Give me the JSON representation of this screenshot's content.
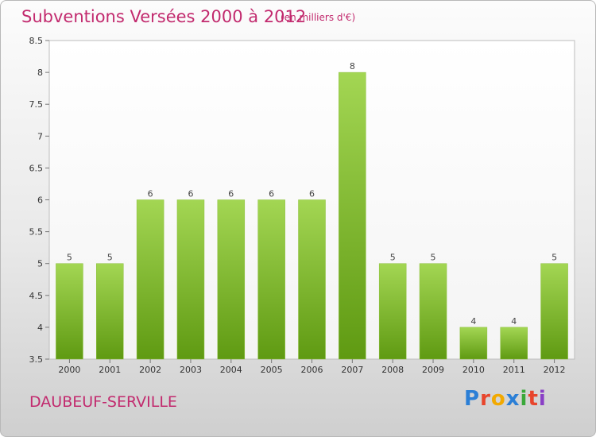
{
  "title": "Subventions Versées 2000 à 2012",
  "subtitle": "(en milliers d'€)",
  "place": "DAUBEUF-SERVILLE",
  "logo": "Proxiti",
  "colors": {
    "accent": "#c22a6e",
    "bar_top": "#9fd24c",
    "bar_bottom": "#5f9a12"
  },
  "chart_data": {
    "type": "bar",
    "categories": [
      "2000",
      "2001",
      "2002",
      "2003",
      "2004",
      "2005",
      "2006",
      "2007",
      "2008",
      "2009",
      "2010",
      "2011",
      "2012"
    ],
    "values": [
      5,
      5,
      6,
      6,
      6,
      6,
      6,
      8,
      5,
      5,
      4,
      4,
      5
    ],
    "ylim": [
      3.5,
      8.5
    ],
    "yticks": [
      "3.5",
      "4",
      "4.5",
      "5",
      "5.5",
      "6",
      "6.5",
      "7",
      "7.5",
      "8",
      "8.5"
    ],
    "grid": false
  }
}
